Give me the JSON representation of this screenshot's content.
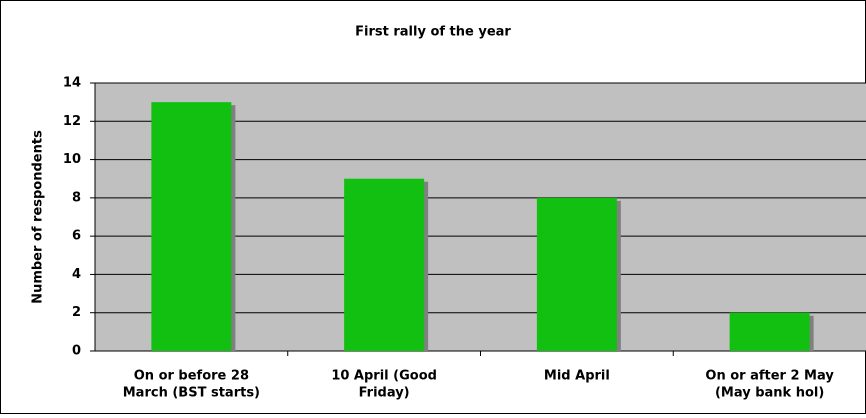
{
  "chart_data": {
    "type": "bar",
    "title": "First rally of the year",
    "y_label": "Number of respondents",
    "categories": [
      [
        "On or before 28",
        "March (BST starts)"
      ],
      [
        "10 April (Good",
        "Friday)"
      ],
      [
        "Mid April"
      ],
      [
        "On or after 2 May",
        "(May bank hol)"
      ]
    ],
    "values": [
      13,
      9,
      8,
      2
    ],
    "color": "#11c011",
    "ylim": [
      0,
      14
    ],
    "yticks": [
      0,
      2,
      4,
      6,
      8,
      10,
      12,
      14
    ],
    "grid": true
  }
}
